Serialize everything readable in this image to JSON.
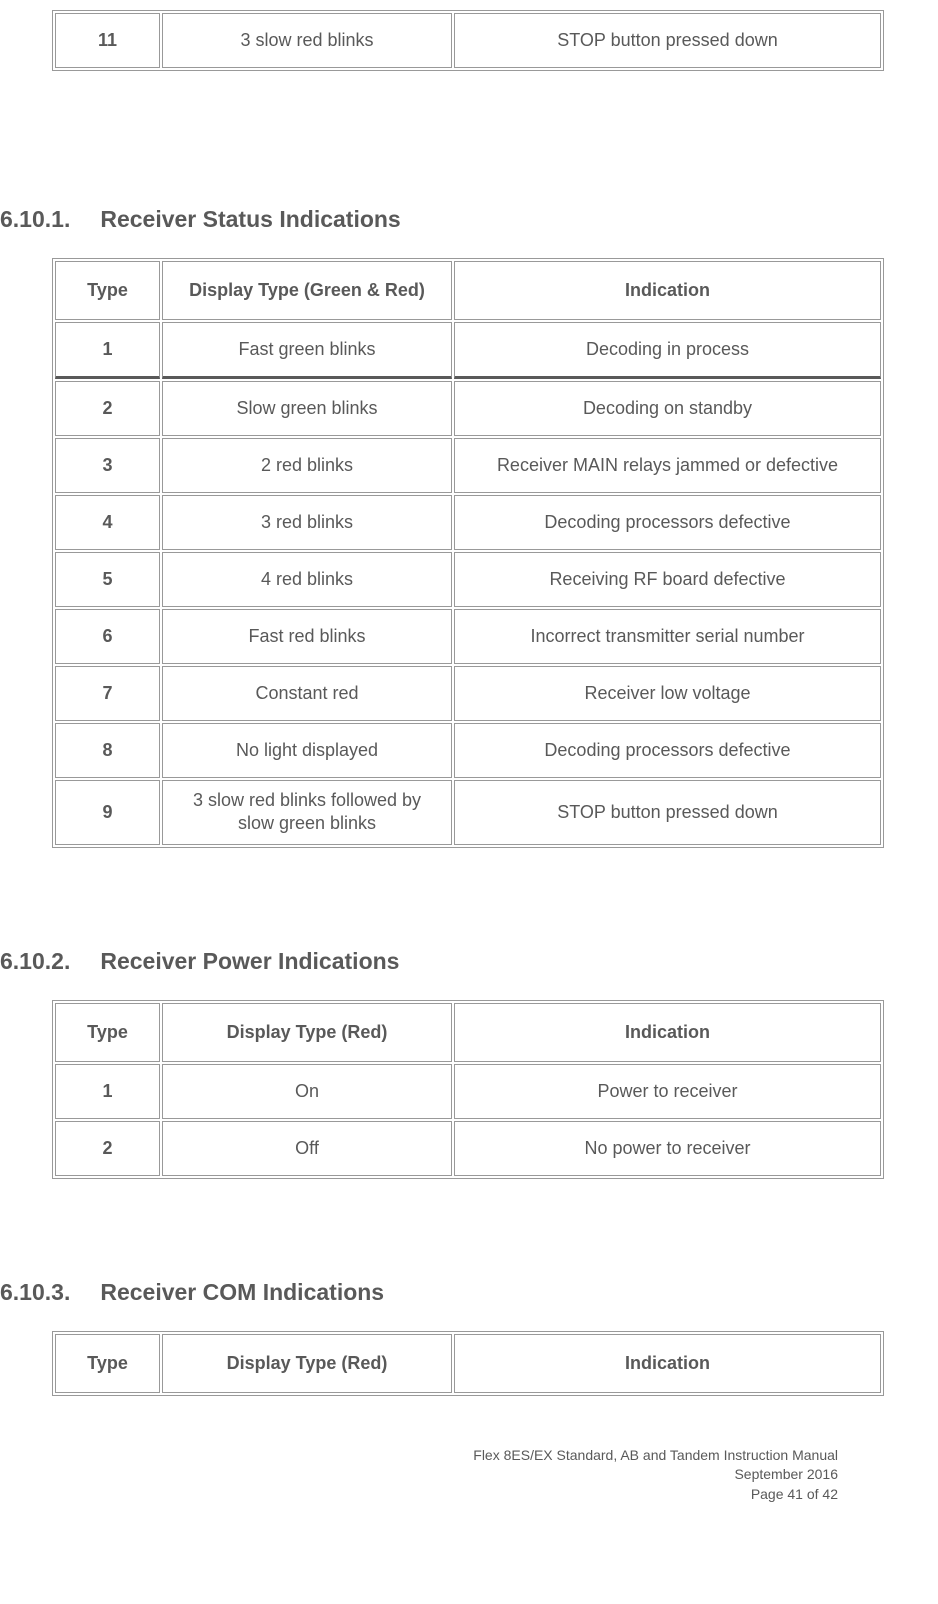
{
  "topTable": {
    "rows": [
      {
        "type": "11",
        "display": "3 slow red blinks",
        "indication": "STOP button pressed down"
      }
    ]
  },
  "sections": [
    {
      "number": "6.10.1.",
      "title": "Receiver Status Indications",
      "headers": {
        "type": "Type",
        "display": "Display Type (Green & Red)",
        "indication": "Indication"
      },
      "rows": [
        {
          "type": "1",
          "display": "Fast green blinks",
          "indication": "Decoding in process",
          "thickBottom": true
        },
        {
          "type": "2",
          "display": "Slow green blinks",
          "indication": "Decoding on standby"
        },
        {
          "type": "3",
          "display": "2 red blinks",
          "indication": "Receiver MAIN relays jammed or defective"
        },
        {
          "type": "4",
          "display": "3 red blinks",
          "indication": "Decoding processors defective"
        },
        {
          "type": "5",
          "display": "4 red blinks",
          "indication": "Receiving RF board defective"
        },
        {
          "type": "6",
          "display": "Fast red blinks",
          "indication": "Incorrect transmitter serial number"
        },
        {
          "type": "7",
          "display": "Constant red",
          "indication": "Receiver low voltage"
        },
        {
          "type": "8",
          "display": "No light displayed",
          "indication": "Decoding processors defective"
        },
        {
          "type": "9",
          "display": "3 slow red blinks followed by slow green blinks",
          "indication": "STOP button pressed down",
          "multiline": true
        }
      ]
    },
    {
      "number": "6.10.2.",
      "title": "Receiver Power Indications",
      "headers": {
        "type": "Type",
        "display": "Display Type (Red)",
        "indication": "Indication"
      },
      "rows": [
        {
          "type": "1",
          "display": "On",
          "indication": "Power to receiver"
        },
        {
          "type": "2",
          "display": "Off",
          "indication": "No power to receiver"
        }
      ]
    },
    {
      "number": "6.10.3.",
      "title": "Receiver COM Indications",
      "headers": {
        "type": "Type",
        "display": "Display Type (Red)",
        "indication": "Indication"
      },
      "rows": []
    }
  ],
  "footer": {
    "line1": "Flex 8ES/EX Standard, AB and Tandem Instruction Manual",
    "line2": "September 2016",
    "line3": "Page 41 of 42"
  },
  "colors": {
    "text": "#595959",
    "border": "#999999",
    "background": "#ffffff"
  },
  "typography": {
    "heading_fontsize": 23,
    "body_fontsize": 18,
    "footer_fontsize": 14
  }
}
